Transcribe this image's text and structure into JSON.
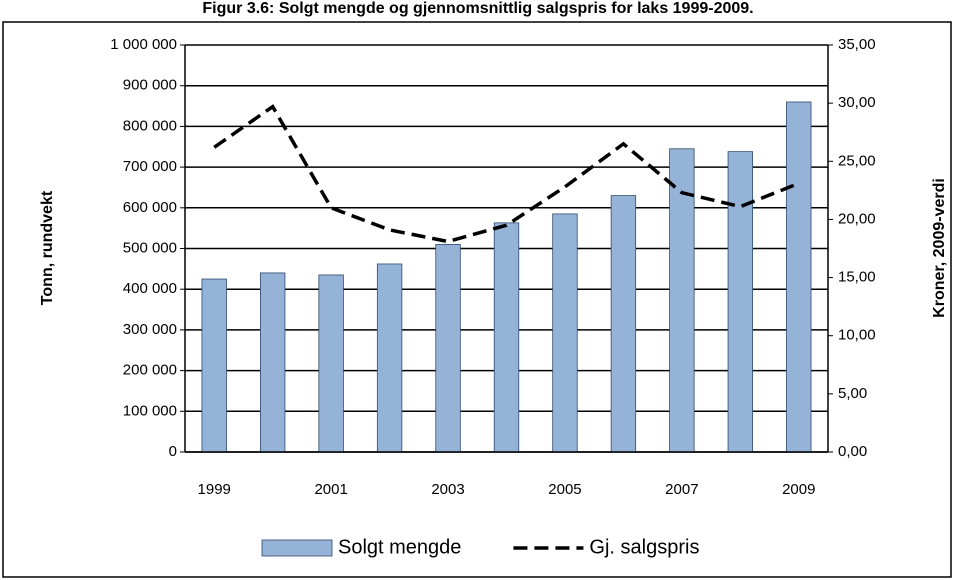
{
  "chart_data": {
    "type": "bar-line",
    "title": "Figur 3.6: Solgt mengde og gjennomsnittlig salgspris for laks 1999-2009.",
    "y_label": "Tonn, rundvekt",
    "y2_label": "Kroner, 2009-verdi",
    "categories": [
      "1999",
      null,
      "2001",
      null,
      "2003",
      null,
      "2005",
      null,
      "2007",
      null,
      "2009"
    ],
    "series": [
      {
        "name": "Solgt mengde",
        "type": "bar",
        "color": "#95b3d7",
        "values": [
          425000,
          440000,
          435000,
          462000,
          510000,
          563000,
          585000,
          630000,
          745000,
          738000,
          860000
        ]
      },
      {
        "name": "Gj. salgspris",
        "type": "line",
        "axis": "y2",
        "color": "#000000",
        "values": [
          26.2,
          29.7,
          21.0,
          19.1,
          18.1,
          19.5,
          22.8,
          26.5,
          22.3,
          21.1,
          23.1
        ]
      }
    ],
    "ylim": [
      0,
      1000000
    ],
    "yticks": [
      0,
      {
        "value": 100000,
        "label": "100 000"
      },
      {
        "value": 200000,
        "label": "200 000"
      },
      {
        "value": 300000,
        "label": "300 000"
      },
      {
        "value": 400000,
        "label": "400 000"
      },
      {
        "value": 500000,
        "label": "500 000"
      },
      {
        "value": 600000,
        "label": "600 000"
      },
      {
        "value": 700000,
        "label": "700 000"
      },
      {
        "value": 800000,
        "label": "800 000"
      },
      {
        "value": 900000,
        "label": "900 000"
      },
      {
        "value": 1000000,
        "label": "1 000 000"
      }
    ],
    "y2lim": [
      0,
      35
    ],
    "y2ticks": [
      {
        "value": 0,
        "label": "0,00"
      },
      {
        "value": 5,
        "label": "5,00"
      },
      {
        "value": 10,
        "label": "10,00"
      },
      {
        "value": 15,
        "label": "15,00"
      },
      {
        "value": 20,
        "label": "20,00"
      },
      {
        "value": 25,
        "label": "25,00"
      },
      {
        "value": 30,
        "label": "30,00"
      },
      {
        "value": 35,
        "label": "35,00"
      }
    ],
    "grid": true,
    "legend": "bottom"
  }
}
